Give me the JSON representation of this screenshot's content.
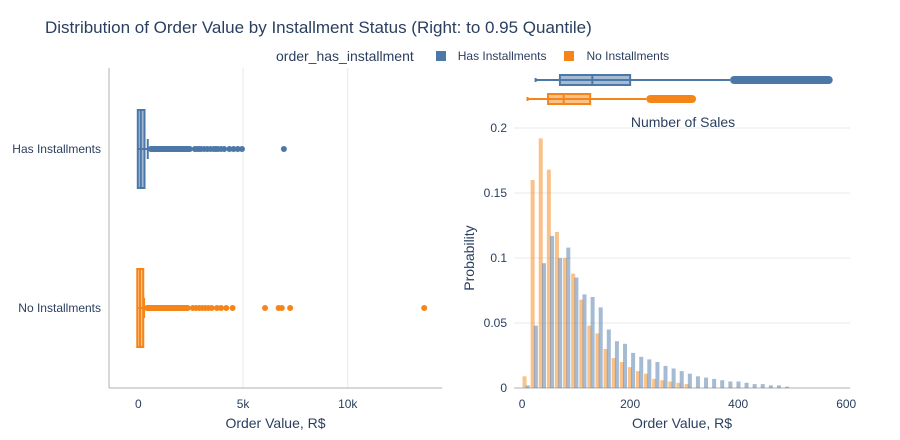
{
  "title": "Distribution of Order Value by Installment Status (Right: to 0.95 Quantile)",
  "legend": {
    "title": "order_has_installment",
    "items": [
      {
        "label": "Has Installments",
        "color": "#4c78a8"
      },
      {
        "label": "No Installments",
        "color": "#f58518"
      }
    ]
  },
  "chart_data": [
    {
      "type": "box",
      "orientation": "horizontal",
      "xlabel": "Order Value, R$",
      "xlim": [
        -1400,
        14500
      ],
      "x_ticks": [
        {
          "v": 0,
          "label": "0"
        },
        {
          "v": 5000,
          "label": "5k"
        },
        {
          "v": 10000,
          "label": "10k"
        }
      ],
      "categories": [
        "Has Installments",
        "No Installments"
      ],
      "grid": true,
      "series": [
        {
          "name": "Has Installments",
          "color": "#4c78a8",
          "q1": 70,
          "median": 120,
          "q3": 200,
          "whisker_low": 10,
          "whisker_high": 450,
          "outlier_dense_range": [
            450,
            2600
          ],
          "outliers": [
            2700,
            2800,
            2900,
            3000,
            3150,
            3300,
            3450,
            3600,
            3700,
            3800,
            3950,
            4100,
            4350,
            4550,
            4750,
            4950,
            6950
          ]
        },
        {
          "name": "No Installments",
          "color": "#f58518",
          "q1": 45,
          "median": 80,
          "q3": 130,
          "whisker_low": 5,
          "whisker_high": 275,
          "outlier_dense_range": [
            275,
            2500
          ],
          "outliers": [
            2600,
            2750,
            2900,
            3050,
            3200,
            3350,
            3500,
            3750,
            3950,
            4200,
            4500,
            6050,
            6700,
            6850,
            7250,
            13650
          ]
        }
      ]
    },
    {
      "type": "bar",
      "title": "Number of Sales",
      "xlabel": "Order Value, R$",
      "ylabel": "Probability",
      "xlim": [
        -15,
        607
      ],
      "ylim": [
        0,
        0.2
      ],
      "x_ticks": [
        {
          "v": 0,
          "label": "0"
        },
        {
          "v": 200,
          "label": "200"
        },
        {
          "v": 400,
          "label": "400"
        },
        {
          "v": 600,
          "label": "600"
        }
      ],
      "y_ticks": [
        {
          "v": 0,
          "label": "0"
        },
        {
          "v": 0.05,
          "label": "0.05"
        },
        {
          "v": 0.1,
          "label": "0.1"
        },
        {
          "v": 0.15,
          "label": "0.15"
        },
        {
          "v": 0.2,
          "label": "0.2"
        }
      ],
      "bin_width": 15,
      "grid": true,
      "series": [
        {
          "name": "No Installments",
          "color": "#f58518",
          "bin_start": 0,
          "values": [
            0.009,
            0.16,
            0.192,
            0.168,
            0.12,
            0.1,
            0.088,
            0.068,
            0.048,
            0.042,
            0.03,
            0.023,
            0.02,
            0.016,
            0.013,
            0.011,
            0.007,
            0.006,
            0.005,
            0.004,
            0.003
          ]
        },
        {
          "name": "Has Installments",
          "color": "#4c78a8",
          "bin_start": 0,
          "values": [
            0.002,
            0.048,
            0.096,
            0.117,
            0.1,
            0.108,
            0.085,
            0.072,
            0.07,
            0.062,
            0.045,
            0.036,
            0.034,
            0.027,
            0.024,
            0.022,
            0.02,
            0.017,
            0.015,
            0.013,
            0.011,
            0.009,
            0.008,
            0.007,
            0.006,
            0.005,
            0.005,
            0.004,
            0.003,
            0.003,
            0.002,
            0.002,
            0.001
          ]
        }
      ]
    },
    {
      "type": "box",
      "orientation": "horizontal",
      "shared_x_with_previous": true,
      "series": [
        {
          "name": "Has Installments",
          "color": "#4c78a8",
          "q1": 70,
          "median": 130,
          "q3": 200,
          "whisker_low": 25,
          "whisker_high": 385,
          "outlier_dense_range": [
            385,
            575
          ]
        },
        {
          "name": "No Installments",
          "color": "#f58518",
          "q1": 48,
          "median": 77,
          "q3": 126,
          "whisker_low": 10,
          "whisker_high": 230,
          "outlier_dense_range": [
            230,
            322
          ]
        }
      ]
    }
  ]
}
